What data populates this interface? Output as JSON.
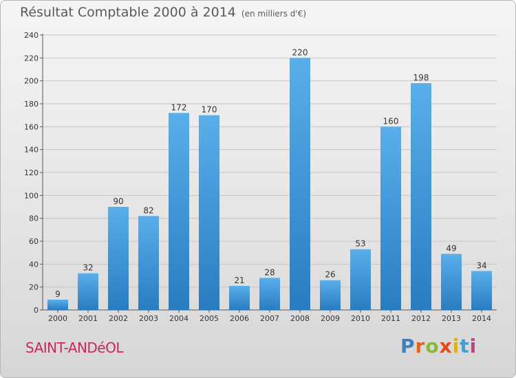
{
  "header": {
    "title": "Résultat Comptable 2000 à 2014",
    "subtitle": "(en milliers d'€)"
  },
  "footer": {
    "city": "SAINT-ANDéOL",
    "logo": "Proxiti"
  },
  "colors": {
    "bar_top": "#5aaeea",
    "bar_bottom": "#2a7cc0",
    "title": "#5a5a5a",
    "city": "#c8285a",
    "logo_letters": [
      "#3b7fc4",
      "#e2641c",
      "#8ab93a",
      "#e24c1c",
      "#d7b21c",
      "#3b9fd8",
      "#c83c8c"
    ]
  },
  "chart_data": {
    "type": "bar",
    "title": "Résultat Comptable 2000 à 2014",
    "subtitle": "(en milliers d'€)",
    "categories": [
      "2000",
      "2001",
      "2002",
      "2003",
      "2004",
      "2005",
      "2006",
      "2007",
      "2008",
      "2009",
      "2010",
      "2011",
      "2012",
      "2013",
      "2014"
    ],
    "values": [
      9,
      32,
      90,
      82,
      172,
      170,
      21,
      28,
      220,
      26,
      53,
      160,
      198,
      49,
      34
    ],
    "ylim": [
      0,
      240
    ],
    "yticks": [
      0,
      20,
      40,
      60,
      80,
      100,
      120,
      140,
      160,
      180,
      200,
      220,
      240
    ],
    "grid": true,
    "xlabel": "",
    "ylabel": ""
  }
}
